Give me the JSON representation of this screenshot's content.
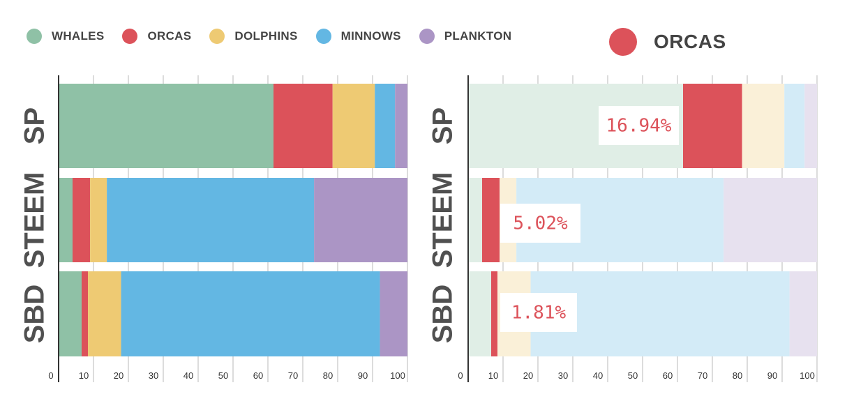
{
  "legend": {
    "items": [
      {
        "label": "WHALES",
        "color": "#8fc1a6"
      },
      {
        "label": "ORCAS",
        "color": "#dc525a"
      },
      {
        "label": "DOLPHINS",
        "color": "#eeca73"
      },
      {
        "label": "MINNOWS",
        "color": "#63b7e3"
      },
      {
        "label": "PLANKTON",
        "color": "#ab95c5"
      }
    ]
  },
  "focus": {
    "label": "ORCAS",
    "color": "#dc525a"
  },
  "chart_data": [
    {
      "type": "bar",
      "orientation": "horizontal",
      "stacked": true,
      "categories": [
        "SP",
        "STEEM",
        "SBD"
      ],
      "series": [
        {
          "name": "WHALES",
          "color": "#8fc1a6",
          "values": [
            61.6,
            4.0,
            6.6
          ]
        },
        {
          "name": "ORCAS",
          "color": "#dc525a",
          "values": [
            16.94,
            5.02,
            1.81
          ]
        },
        {
          "name": "DOLPHINS",
          "color": "#eeca73",
          "values": [
            12.1,
            4.8,
            9.5
          ]
        },
        {
          "name": "MINNOWS",
          "color": "#63b7e3",
          "values": [
            5.8,
            59.4,
            74.2
          ]
        },
        {
          "name": "PLANKTON",
          "color": "#ab95c5",
          "values": [
            3.56,
            26.78,
            7.89
          ]
        }
      ],
      "xlim": [
        0,
        100
      ],
      "xticks": [
        "0",
        "10",
        "20",
        "30",
        "40",
        "50",
        "60",
        "70",
        "80",
        "90",
        "100"
      ],
      "grid": true
    },
    {
      "type": "bar",
      "orientation": "horizontal",
      "stacked": true,
      "highlight": "ORCAS",
      "categories": [
        "SP",
        "STEEM",
        "SBD"
      ],
      "series": [
        {
          "name": "WHALES",
          "color": "#8fc1a6",
          "values": [
            61.6,
            4.0,
            6.6
          ]
        },
        {
          "name": "ORCAS",
          "color": "#dc525a",
          "values": [
            16.94,
            5.02,
            1.81
          ]
        },
        {
          "name": "DOLPHINS",
          "color": "#eeca73",
          "values": [
            12.1,
            4.8,
            9.5
          ]
        },
        {
          "name": "MINNOWS",
          "color": "#63b7e3",
          "values": [
            5.8,
            59.4,
            74.2
          ]
        },
        {
          "name": "PLANKTON",
          "color": "#ab95c5",
          "values": [
            3.56,
            26.78,
            7.89
          ]
        }
      ],
      "annotations": [
        "16.94%",
        "5.02%",
        "1.81%"
      ],
      "xlim": [
        0,
        100
      ],
      "xticks": [
        "0",
        "10",
        "20",
        "30",
        "40",
        "50",
        "60",
        "70",
        "80",
        "90",
        "100"
      ],
      "grid": true
    }
  ]
}
